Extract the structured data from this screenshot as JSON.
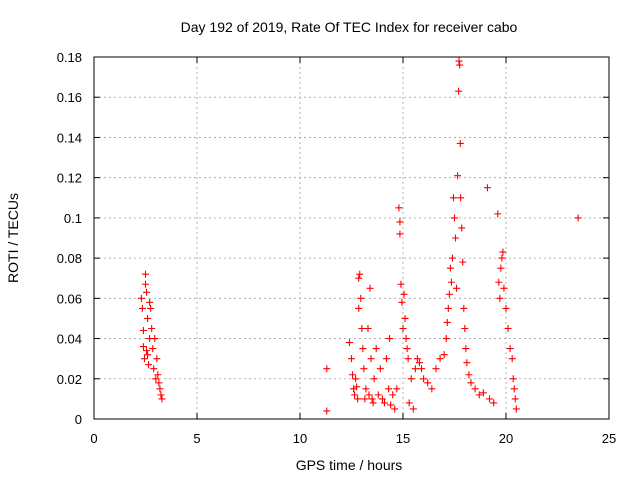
{
  "chart_data": {
    "type": "scatter",
    "title": "Day 192 of 2019, Rate Of TEC Index for receiver cabo",
    "xlabel": "GPS time / hours",
    "ylabel": "ROTI / TECUs",
    "xlim": [
      0,
      25
    ],
    "ylim": [
      0,
      0.18
    ],
    "xticks": [
      0,
      5,
      10,
      15,
      20,
      25
    ],
    "yticks": [
      0,
      0.02,
      0.04,
      0.06,
      0.08,
      0.1,
      0.12,
      0.14,
      0.16,
      0.18
    ],
    "xtick_labels": [
      "0",
      "5",
      "10",
      "15",
      "20",
      "25"
    ],
    "ytick_labels": [
      "0",
      "0.02",
      "0.04",
      "0.06",
      "0.08",
      "0.1",
      "0.12",
      "0.14",
      "0.16",
      "0.18"
    ],
    "grid": true,
    "marker": "+",
    "color": "#ff0000",
    "series": [
      {
        "points": [
          [
            2.3,
            0.06
          ],
          [
            2.35,
            0.055
          ],
          [
            2.4,
            0.044
          ],
          [
            2.4,
            0.036
          ],
          [
            2.45,
            0.03
          ],
          [
            2.5,
            0.067
          ],
          [
            2.5,
            0.072
          ],
          [
            2.55,
            0.063
          ],
          [
            2.55,
            0.034
          ],
          [
            2.6,
            0.05
          ],
          [
            2.6,
            0.032
          ],
          [
            2.65,
            0.027
          ],
          [
            2.7,
            0.058
          ],
          [
            2.7,
            0.04
          ],
          [
            2.75,
            0.055
          ],
          [
            2.8,
            0.045
          ],
          [
            2.85,
            0.035
          ],
          [
            2.9,
            0.025
          ],
          [
            2.95,
            0.04
          ],
          [
            3.0,
            0.02
          ],
          [
            3.05,
            0.03
          ],
          [
            3.1,
            0.022
          ],
          [
            3.15,
            0.018
          ],
          [
            3.2,
            0.015
          ],
          [
            3.25,
            0.012
          ],
          [
            3.3,
            0.01
          ],
          [
            11.3,
            0.025
          ],
          [
            11.3,
            0.004
          ],
          [
            12.4,
            0.038
          ],
          [
            12.5,
            0.03
          ],
          [
            12.55,
            0.022
          ],
          [
            12.6,
            0.015
          ],
          [
            12.65,
            0.012
          ],
          [
            12.7,
            0.02
          ],
          [
            12.75,
            0.016
          ],
          [
            12.8,
            0.01
          ],
          [
            12.85,
            0.055
          ],
          [
            12.85,
            0.07
          ],
          [
            12.9,
            0.072
          ],
          [
            12.95,
            0.06
          ],
          [
            13.0,
            0.045
          ],
          [
            13.05,
            0.035
          ],
          [
            13.1,
            0.025
          ],
          [
            13.15,
            0.01
          ],
          [
            13.2,
            0.015
          ],
          [
            13.3,
            0.045
          ],
          [
            13.35,
            0.012
          ],
          [
            13.4,
            0.065
          ],
          [
            13.45,
            0.03
          ],
          [
            13.5,
            0.01
          ],
          [
            13.55,
            0.008
          ],
          [
            13.6,
            0.02
          ],
          [
            13.7,
            0.035
          ],
          [
            13.8,
            0.012
          ],
          [
            13.9,
            0.025
          ],
          [
            14.0,
            0.01
          ],
          [
            14.1,
            0.008
          ],
          [
            14.2,
            0.03
          ],
          [
            14.3,
            0.015
          ],
          [
            14.35,
            0.04
          ],
          [
            14.4,
            0.007
          ],
          [
            14.5,
            0.012
          ],
          [
            14.6,
            0.005
          ],
          [
            14.7,
            0.015
          ],
          [
            14.8,
            0.105
          ],
          [
            14.85,
            0.098
          ],
          [
            14.85,
            0.092
          ],
          [
            14.9,
            0.067
          ],
          [
            14.95,
            0.058
          ],
          [
            15.0,
            0.045
          ],
          [
            15.05,
            0.062
          ],
          [
            15.1,
            0.05
          ],
          [
            15.15,
            0.04
          ],
          [
            15.2,
            0.035
          ],
          [
            15.25,
            0.03
          ],
          [
            15.3,
            0.008
          ],
          [
            15.4,
            0.02
          ],
          [
            15.5,
            0.005
          ],
          [
            15.6,
            0.025
          ],
          [
            15.7,
            0.03
          ],
          [
            15.8,
            0.028
          ],
          [
            15.9,
            0.025
          ],
          [
            16.0,
            0.02
          ],
          [
            16.2,
            0.018
          ],
          [
            16.4,
            0.015
          ],
          [
            16.6,
            0.025
          ],
          [
            16.8,
            0.03
          ],
          [
            17.0,
            0.032
          ],
          [
            17.1,
            0.04
          ],
          [
            17.15,
            0.048
          ],
          [
            17.2,
            0.055
          ],
          [
            17.25,
            0.062
          ],
          [
            17.3,
            0.075
          ],
          [
            17.35,
            0.068
          ],
          [
            17.4,
            0.08
          ],
          [
            17.45,
            0.11
          ],
          [
            17.5,
            0.1
          ],
          [
            17.55,
            0.09
          ],
          [
            17.6,
            0.065
          ],
          [
            17.65,
            0.121
          ],
          [
            17.7,
            0.163
          ],
          [
            17.72,
            0.178
          ],
          [
            17.75,
            0.176
          ],
          [
            17.78,
            0.137
          ],
          [
            17.8,
            0.11
          ],
          [
            17.85,
            0.095
          ],
          [
            17.9,
            0.078
          ],
          [
            17.95,
            0.055
          ],
          [
            18.0,
            0.045
          ],
          [
            18.05,
            0.035
          ],
          [
            18.1,
            0.028
          ],
          [
            18.2,
            0.022
          ],
          [
            18.3,
            0.018
          ],
          [
            18.5,
            0.015
          ],
          [
            18.7,
            0.012
          ],
          [
            18.9,
            0.013
          ],
          [
            19.1,
            0.115
          ],
          [
            19.2,
            0.01
          ],
          [
            19.4,
            0.008
          ],
          [
            19.6,
            0.102
          ],
          [
            19.65,
            0.068
          ],
          [
            19.7,
            0.06
          ],
          [
            19.75,
            0.075
          ],
          [
            19.8,
            0.08
          ],
          [
            19.85,
            0.083
          ],
          [
            19.9,
            0.065
          ],
          [
            20.0,
            0.055
          ],
          [
            20.1,
            0.045
          ],
          [
            20.2,
            0.035
          ],
          [
            20.3,
            0.03
          ],
          [
            20.35,
            0.02
          ],
          [
            20.4,
            0.015
          ],
          [
            20.45,
            0.01
          ],
          [
            20.5,
            0.005
          ],
          [
            23.5,
            0.1
          ]
        ]
      }
    ]
  }
}
